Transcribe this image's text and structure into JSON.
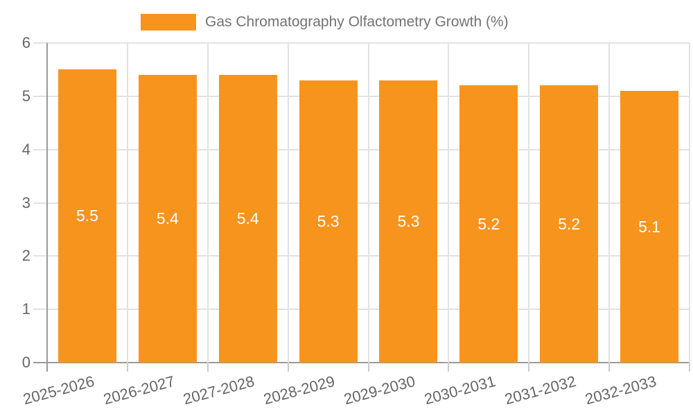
{
  "chart_data": {
    "type": "bar",
    "title": "Gas Chromatography Olfactometry Growth (%)",
    "legend_entries": [
      "Gas Chromatography Olfactometry Growth (%)"
    ],
    "legend_position": "top-center",
    "categories": [
      "2025-2026",
      "2026-2027",
      "2027-2028",
      "2028-2029",
      "2029-2030",
      "2030-2031",
      "2031-2032",
      "2032-2033"
    ],
    "values": [
      5.5,
      5.4,
      5.4,
      5.3,
      5.3,
      5.2,
      5.2,
      5.1
    ],
    "value_labels": [
      "5.5",
      "5.4",
      "5.4",
      "5.3",
      "5.3",
      "5.2",
      "5.2",
      "5.1"
    ],
    "xlabel": "",
    "ylabel": "",
    "ylim": [
      0,
      6
    ],
    "yticks": [
      "0",
      "1",
      "2",
      "3",
      "4",
      "5",
      "6"
    ],
    "grid": true,
    "colors": {
      "bar": "#F7941E",
      "bar_label": "#FFFFFF",
      "axis": "#999999",
      "grid": "#E2E2E2",
      "tick": "#CCCCCC",
      "axis_text": "#666666",
      "legend_text": "#737373",
      "background": "#FFFFFF"
    }
  }
}
